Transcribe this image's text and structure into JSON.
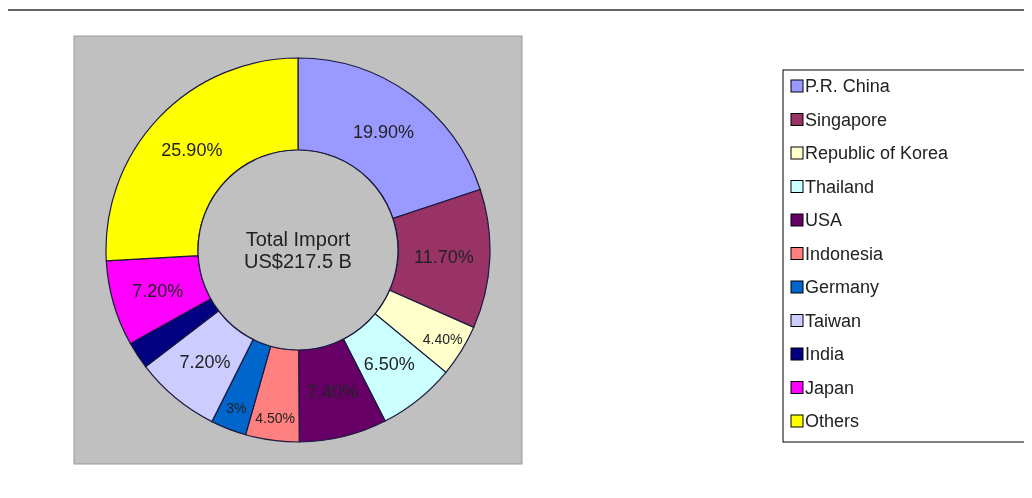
{
  "chart_data": {
    "type": "donut",
    "categories": [
      "P.R. China",
      "Singapore",
      "Republic of Korea",
      "Thailand",
      "USA",
      "Indonesia",
      "Germany",
      "Taiwan",
      "India",
      "Japan",
      "Others"
    ],
    "values": [
      19.9,
      11.7,
      4.4,
      6.5,
      7.4,
      4.5,
      3,
      7.2,
      2.3,
      7.2,
      25.9
    ],
    "value_labels": [
      "19.90%",
      "11.70%",
      "4.40%",
      "6.50%",
      "7.40%",
      "4.50%",
      "3%",
      "7.20%",
      null,
      "7.20%",
      "25.90%"
    ],
    "colors": [
      "#9999ff",
      "#993366",
      "#ffffcc",
      "#ccffff",
      "#660066",
      "#ff8080",
      "#0066cc",
      "#ccccff",
      "#000080",
      "#ff00ff",
      "#ffff00"
    ],
    "annotations": [
      "Total Import",
      "US$217.5 B"
    ],
    "legend": "right"
  }
}
